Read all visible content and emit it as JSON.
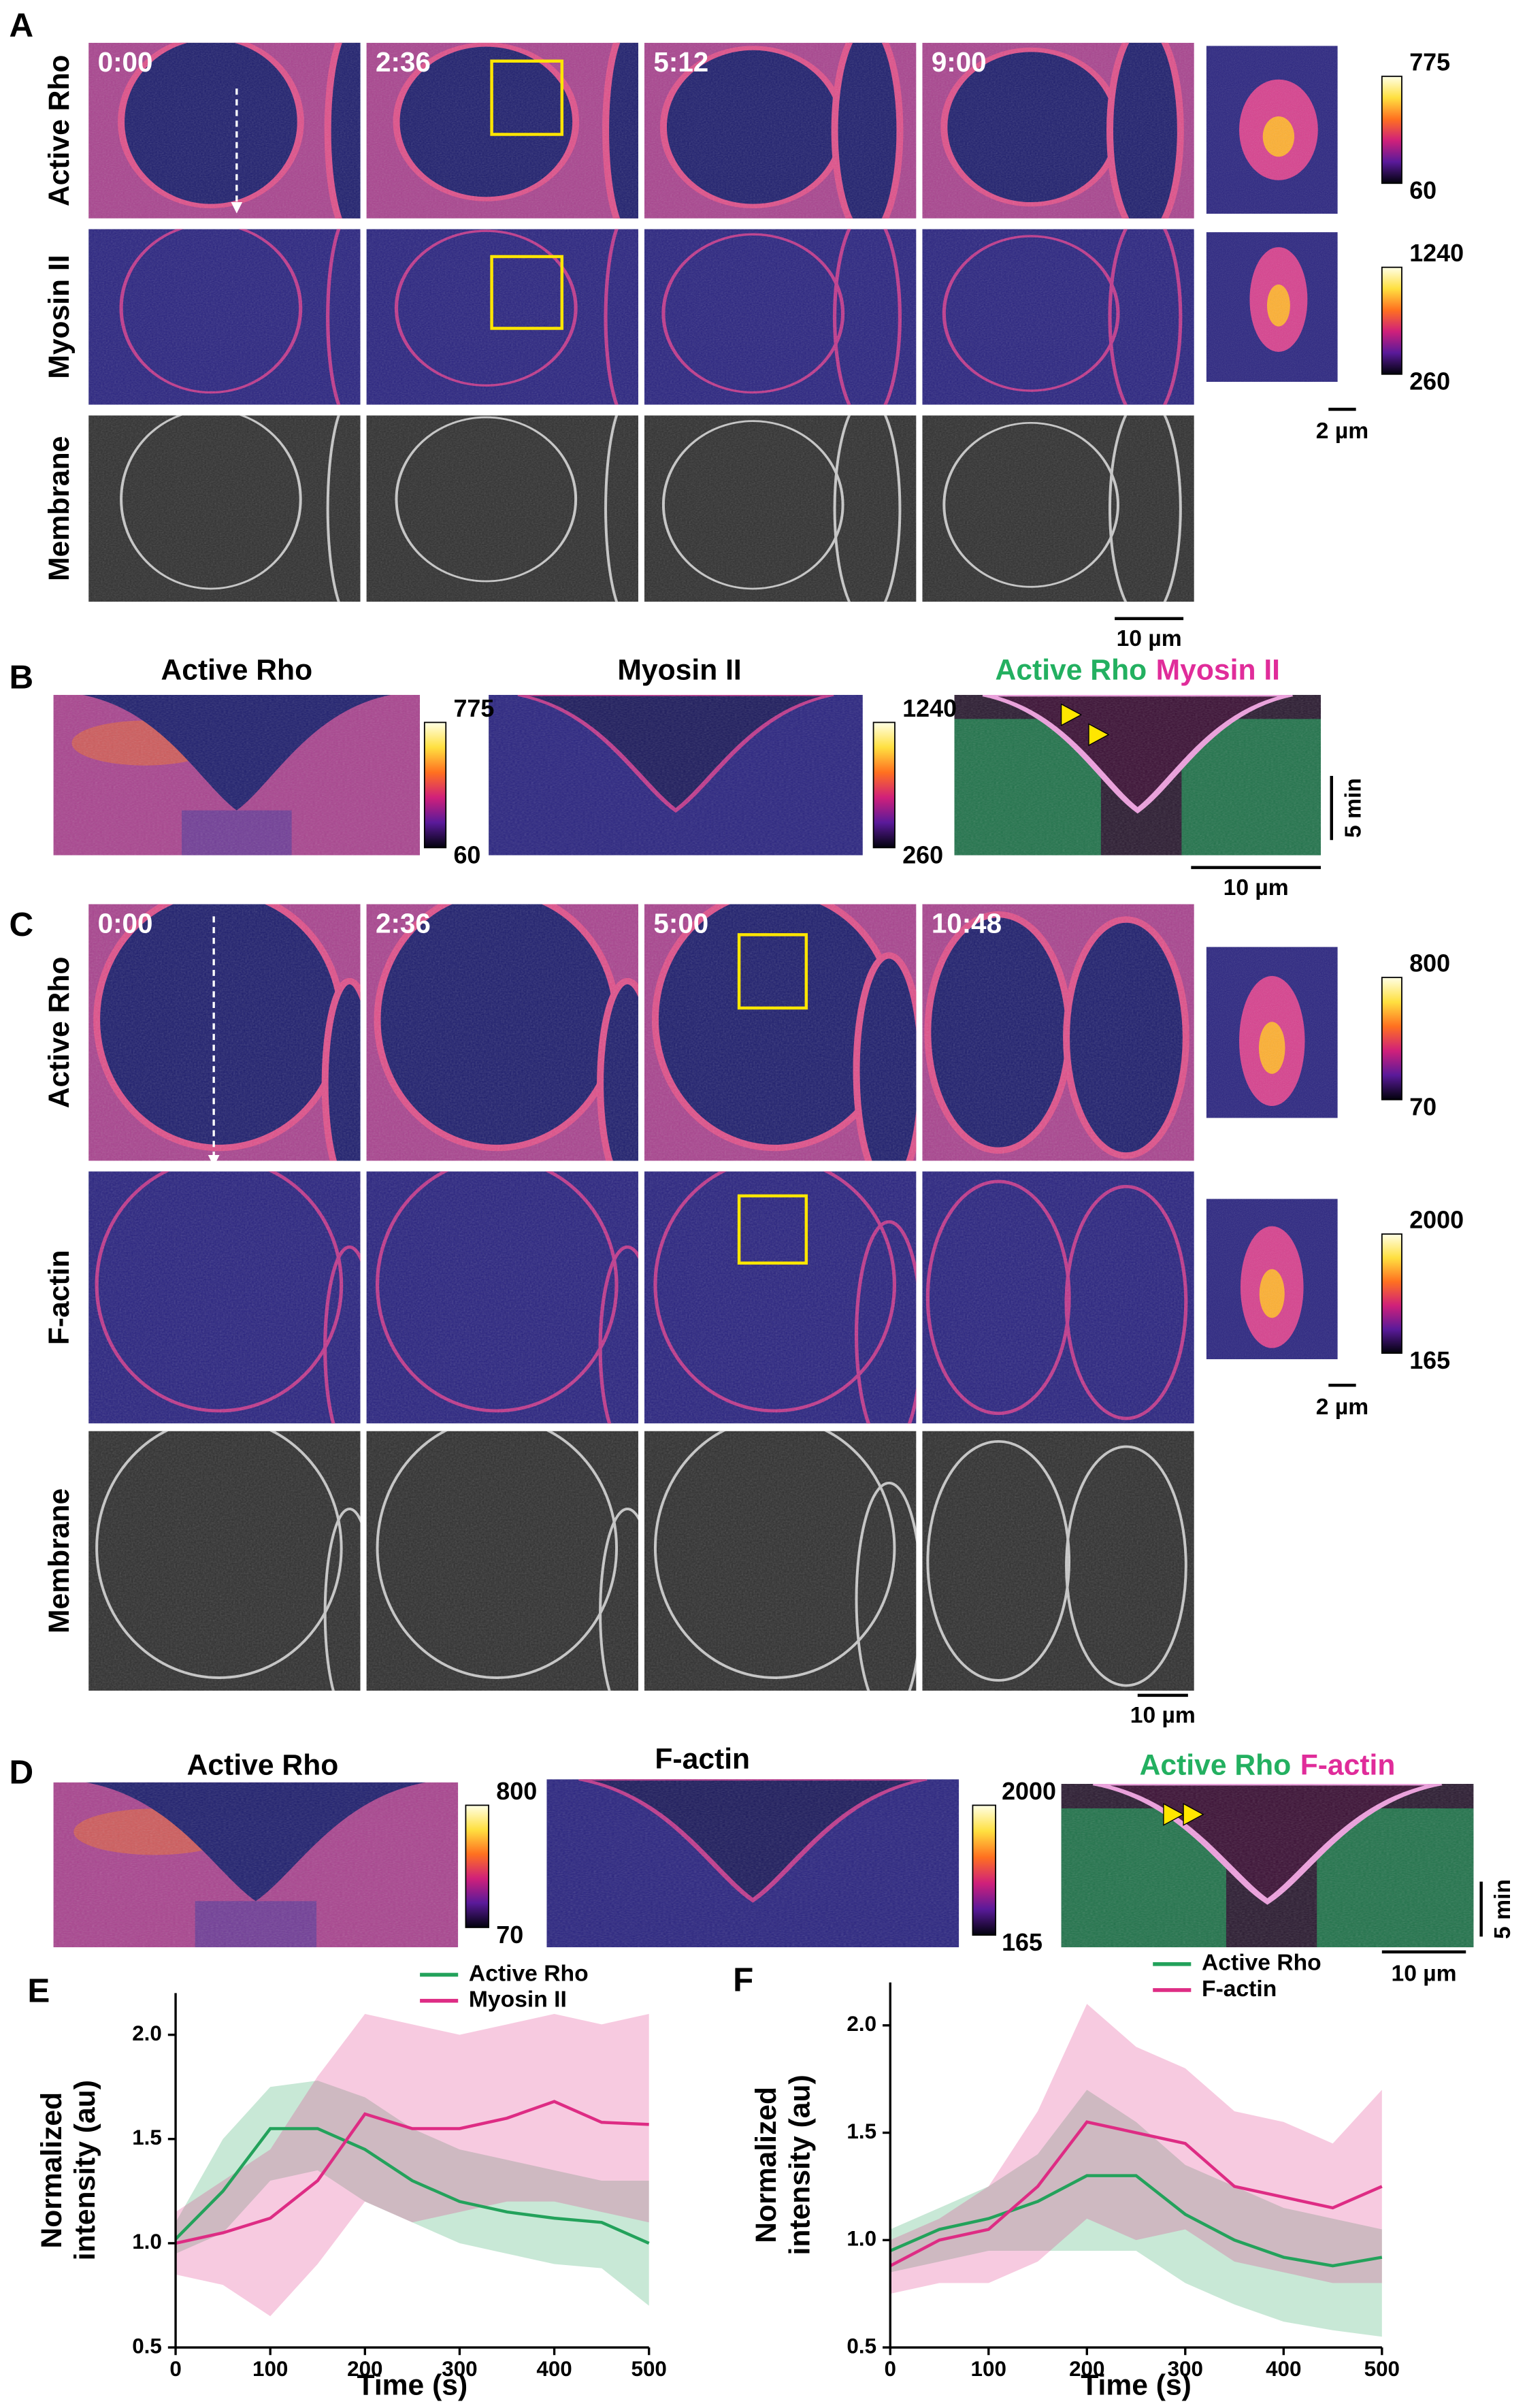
{
  "panel_a": {
    "letter": "A",
    "times": [
      "0:00",
      "2:36",
      "5:12",
      "9:00"
    ],
    "rows": [
      "Active Rho",
      "Myosin II",
      "Membrane"
    ],
    "colorbars": [
      {
        "max": 775,
        "min": 60
      },
      {
        "max": 1240,
        "min": 260
      }
    ],
    "inset_scale": "2 µm",
    "scale": "10 µm"
  },
  "panel_b": {
    "letter": "B",
    "titles": [
      "Active Rho",
      "Myosin II"
    ],
    "merge": [
      "Active Rho",
      "Myosin II"
    ],
    "colorbars": [
      {
        "max": 775,
        "min": 60
      },
      {
        "max": 1240,
        "min": 260
      }
    ],
    "time_scale": "5 min",
    "scale": "10 µm"
  },
  "panel_c": {
    "letter": "C",
    "times": [
      "0:00",
      "2:36",
      "5:00",
      "10:48"
    ],
    "rows": [
      "Active Rho",
      "F-actin",
      "Membrane"
    ],
    "colorbars": [
      {
        "max": 800,
        "min": 70
      },
      {
        "max": 2000,
        "min": 165
      }
    ],
    "inset_scale": "2 µm",
    "scale": "10 µm"
  },
  "panel_d": {
    "letter": "D",
    "titles": [
      "Active Rho",
      "F-actin"
    ],
    "merge": [
      "Active Rho",
      "F-actin"
    ],
    "colorbars": [
      {
        "max": 800,
        "min": 70
      },
      {
        "max": 2000,
        "min": 165
      }
    ],
    "time_scale": "5 min",
    "scale": "10 µm"
  },
  "chart_data": [
    {
      "type": "line",
      "letter": "E",
      "ylabel": [
        "Normalized",
        "intensity (au)"
      ],
      "xlabel": "Time (s)",
      "x": [
        0,
        50,
        100,
        150,
        200,
        250,
        300,
        350,
        400,
        450,
        500
      ],
      "xlim": [
        0,
        500
      ],
      "xticks": [
        0,
        100,
        200,
        300,
        400,
        500
      ],
      "ylim": [
        0.5,
        2.2
      ],
      "yticks": [
        0.5,
        {
          "value": 1,
          "label": "1.0"
        },
        1.5,
        {
          "value": 2,
          "label": "2.0"
        }
      ],
      "legend": "upper right",
      "series": [
        {
          "name": "Active Rho",
          "color": "#23a25b",
          "values": [
            1.02,
            1.25,
            1.55,
            1.55,
            1.45,
            1.3,
            1.2,
            1.15,
            1.12,
            1.1,
            1.0
          ],
          "upper": [
            1.1,
            1.5,
            1.75,
            1.78,
            1.7,
            1.55,
            1.45,
            1.4,
            1.35,
            1.3,
            1.3
          ],
          "lower": [
            0.95,
            1.05,
            1.3,
            1.35,
            1.2,
            1.1,
            1.0,
            0.95,
            0.9,
            0.88,
            0.7
          ]
        },
        {
          "name": "Myosin II",
          "color": "#de2c84",
          "values": [
            1.0,
            1.05,
            1.12,
            1.3,
            1.62,
            1.55,
            1.55,
            1.6,
            1.68,
            1.58,
            1.57
          ],
          "upper": [
            1.15,
            1.3,
            1.45,
            1.8,
            2.1,
            2.05,
            2.0,
            2.05,
            2.1,
            2.05,
            2.1
          ],
          "lower": [
            0.85,
            0.8,
            0.65,
            0.9,
            1.2,
            1.1,
            1.15,
            1.2,
            1.2,
            1.15,
            1.1
          ]
        }
      ]
    },
    {
      "type": "line",
      "letter": "F",
      "ylabel": [
        "Normalized",
        "intensity (au)"
      ],
      "xlabel": "Time (s)",
      "x": [
        0,
        50,
        100,
        150,
        200,
        250,
        300,
        350,
        400,
        450,
        500
      ],
      "xlim": [
        0,
        500
      ],
      "xticks": [
        0,
        100,
        200,
        300,
        400,
        500
      ],
      "ylim": [
        0.5,
        2.2
      ],
      "yticks": [
        0.5,
        {
          "value": 1,
          "label": "1.0"
        },
        1.5,
        {
          "value": 2,
          "label": "2.0"
        }
      ],
      "legend": "upper right",
      "series": [
        {
          "name": "Active Rho",
          "color": "#23a25b",
          "values": [
            0.95,
            1.05,
            1.1,
            1.18,
            1.3,
            1.3,
            1.12,
            1.0,
            0.92,
            0.88,
            0.92
          ],
          "upper": [
            1.05,
            1.15,
            1.25,
            1.4,
            1.7,
            1.55,
            1.35,
            1.25,
            1.15,
            1.1,
            1.05
          ],
          "lower": [
            0.85,
            0.9,
            0.95,
            0.95,
            0.95,
            0.95,
            0.8,
            0.7,
            0.62,
            0.58,
            0.55
          ]
        },
        {
          "name": "F-actin",
          "color": "#de2c84",
          "values": [
            0.88,
            1.0,
            1.05,
            1.25,
            1.55,
            1.5,
            1.45,
            1.25,
            1.2,
            1.15,
            1.25
          ],
          "upper": [
            1.0,
            1.1,
            1.25,
            1.6,
            2.1,
            1.9,
            1.8,
            1.6,
            1.55,
            1.45,
            1.7
          ],
          "lower": [
            0.75,
            0.8,
            0.8,
            0.9,
            1.1,
            1.0,
            1.05,
            0.9,
            0.85,
            0.8,
            0.8
          ]
        }
      ]
    }
  ]
}
